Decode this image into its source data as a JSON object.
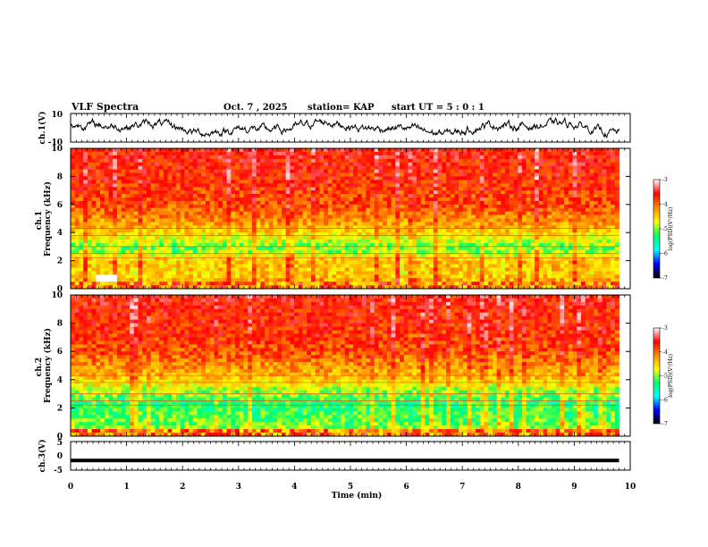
{
  "header": {
    "title": "VLF Spectra",
    "date": "Oct. 7 , 2025",
    "station": "station= KAP",
    "start_ut": "start  UT  =   5  : 0   : 1"
  },
  "x_axis": {
    "label": "Time  (min)",
    "ticks": [
      "0",
      "1",
      "2",
      "3",
      "4",
      "5",
      "6",
      "7",
      "8",
      "9",
      "10"
    ]
  },
  "colorbar": {
    "label": "log(PSD)(V²/Hz)",
    "ticks": [
      "-3",
      "-4",
      "-5",
      "-6",
      "-7"
    ],
    "colors": [
      "#ffffff",
      "#ff0000",
      "#ff8c00",
      "#ffff00",
      "#00ff66",
      "#00ffff",
      "#0000ff",
      "#000000"
    ]
  },
  "chart_data": [
    {
      "type": "line",
      "name": "ch1-waveform",
      "ylabel": "ch.1(V)",
      "yticks": [
        "10",
        "-10"
      ],
      "ylim": [
        -10,
        10
      ],
      "xlim": [
        0,
        10
      ],
      "x_end": 9.8,
      "amplitude_range": [
        -8,
        7
      ]
    },
    {
      "type": "heatmap",
      "name": "ch1-spectrogram",
      "ylabel": "ch.1\nFrequency  (kHz)",
      "yticks": [
        "10",
        "8",
        "6",
        "4",
        "2",
        "0"
      ],
      "ylim": [
        0,
        10
      ],
      "xlim": [
        0,
        10
      ],
      "x_end": 9.8,
      "clim": [
        -7,
        -3
      ],
      "band_profile": [
        {
          "f": 0.0,
          "v": -4.4
        },
        {
          "f": 0.5,
          "v": -4.5
        },
        {
          "f": 1.0,
          "v": -4.8
        },
        {
          "f": 2.0,
          "v": -4.7
        },
        {
          "f": 2.8,
          "v": -5.4
        },
        {
          "f": 3.5,
          "v": -5.0
        },
        {
          "f": 4.5,
          "v": -4.5
        },
        {
          "f": 6.0,
          "v": -4.1
        },
        {
          "f": 8.0,
          "v": -3.9
        },
        {
          "f": 10.0,
          "v": -3.8
        }
      ],
      "gap": {
        "t0": 0.45,
        "t1": 0.85,
        "f0": 0.5,
        "f1": 0.95
      }
    },
    {
      "type": "heatmap",
      "name": "ch2-spectrogram",
      "ylabel": "ch.2\nFrequency  (kHz)",
      "yticks": [
        "10",
        "8",
        "6",
        "4",
        "2",
        "0"
      ],
      "ylim": [
        0,
        10
      ],
      "xlim": [
        0,
        10
      ],
      "x_end": 9.8,
      "clim": [
        -7,
        -3
      ],
      "band_profile": [
        {
          "f": 0.0,
          "v": -4.6
        },
        {
          "f": 0.6,
          "v": -5.3
        },
        {
          "f": 1.5,
          "v": -5.5
        },
        {
          "f": 2.5,
          "v": -5.6
        },
        {
          "f": 3.2,
          "v": -5.2
        },
        {
          "f": 4.0,
          "v": -4.7
        },
        {
          "f": 6.0,
          "v": -4.1
        },
        {
          "f": 8.0,
          "v": -3.9
        },
        {
          "f": 10.0,
          "v": -3.8
        }
      ]
    },
    {
      "type": "line",
      "name": "ch3-waveform",
      "ylabel": "ch.3(V)",
      "yticks": [
        "5",
        "0",
        "-5"
      ],
      "ylim": [
        -5,
        5
      ],
      "xlim": [
        0,
        10
      ],
      "x_end": 9.8,
      "level": -1.5,
      "thickness": 1
    }
  ]
}
